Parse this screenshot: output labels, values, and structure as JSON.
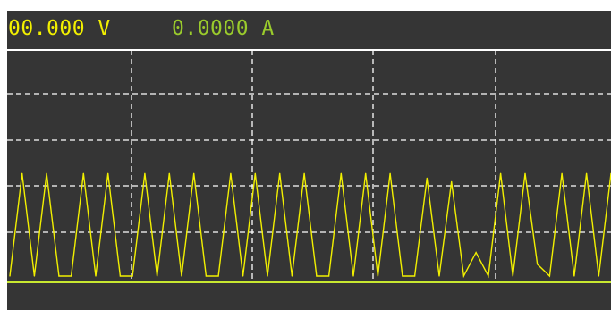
{
  "readout": {
    "voltage": "00.000 V",
    "current": "0.0000 A"
  },
  "colors": {
    "background": "#353535",
    "voltage_text": "#f2f000",
    "current_text": "#9acb2c",
    "trace": "#f2f000",
    "baseline": "#c8e830",
    "grid": "#ffffff"
  },
  "chart_data": {
    "type": "line",
    "grid": "dashed, 5 columns x 5 rows",
    "ylim": [
      0,
      1
    ],
    "series": [
      {
        "values": [
          0,
          0.87,
          0,
          0.87,
          0,
          0,
          0.87,
          0,
          0.87,
          0,
          0,
          0.87,
          0,
          0.87,
          0,
          0.87,
          0,
          0,
          0.87,
          0,
          0.87,
          0,
          0.87,
          0,
          0.87,
          0,
          0,
          0.87,
          0,
          0.87,
          0,
          0.87,
          0,
          0,
          0.83,
          0,
          0.8,
          0,
          0.2,
          0,
          0.87,
          0,
          0.87,
          0.1,
          0,
          0.87,
          0,
          0.87,
          0,
          0.87
        ]
      }
    ]
  }
}
